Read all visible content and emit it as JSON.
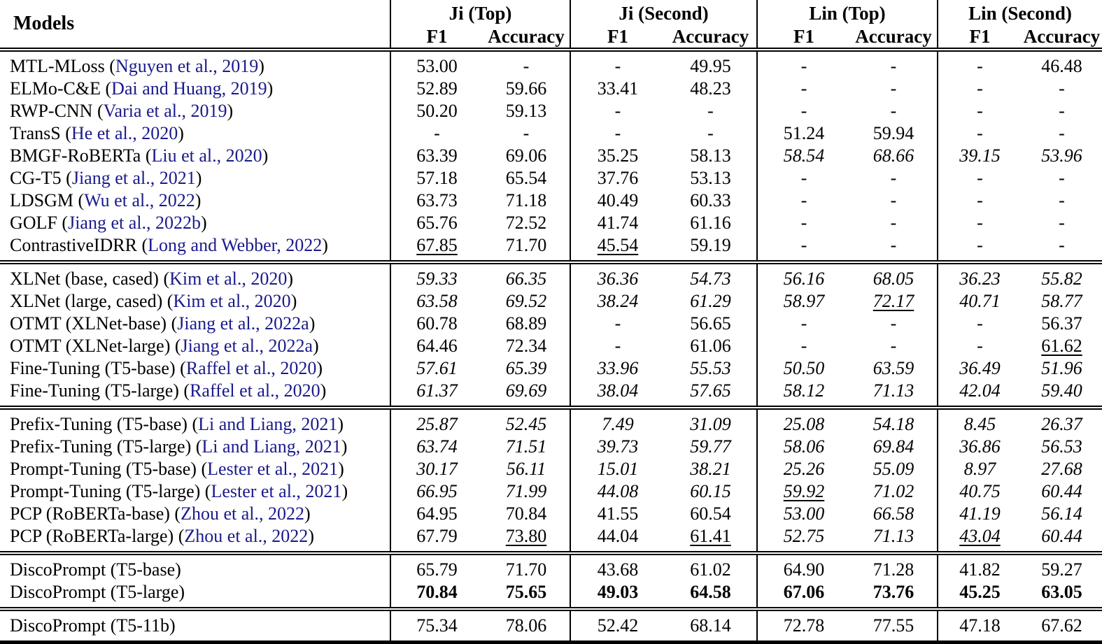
{
  "table": {
    "header": {
      "models_label": "Models",
      "groups": [
        "Ji (Top)",
        "Ji (Second)",
        "Lin (Top)",
        "Lin (Second)"
      ],
      "metrics": [
        "F1",
        "Accuracy"
      ]
    },
    "citation_color": "#1a1a8c",
    "sections": [
      {
        "rows": [
          {
            "model": "MTL-MLoss",
            "citation": "Nguyen et al., 2019",
            "values": [
              {
                "v": "53.00"
              },
              {
                "v": "-"
              },
              {
                "v": "-"
              },
              {
                "v": "49.95"
              },
              {
                "v": "-"
              },
              {
                "v": "-"
              },
              {
                "v": "-"
              },
              {
                "v": "46.48"
              }
            ]
          },
          {
            "model": "ELMo-C&E",
            "citation": "Dai and Huang, 2019",
            "values": [
              {
                "v": "52.89"
              },
              {
                "v": "59.66"
              },
              {
                "v": "33.41"
              },
              {
                "v": "48.23"
              },
              {
                "v": "-"
              },
              {
                "v": "-"
              },
              {
                "v": "-"
              },
              {
                "v": "-"
              }
            ]
          },
          {
            "model": "RWP-CNN",
            "citation": "Varia et al., 2019",
            "values": [
              {
                "v": "50.20"
              },
              {
                "v": "59.13"
              },
              {
                "v": "-"
              },
              {
                "v": "-"
              },
              {
                "v": "-"
              },
              {
                "v": "-"
              },
              {
                "v": "-"
              },
              {
                "v": "-"
              }
            ]
          },
          {
            "model": "TransS",
            "citation": "He et al., 2020",
            "values": [
              {
                "v": "-"
              },
              {
                "v": "-"
              },
              {
                "v": "-"
              },
              {
                "v": "-"
              },
              {
                "v": "51.24"
              },
              {
                "v": "59.94"
              },
              {
                "v": "-"
              },
              {
                "v": "-"
              }
            ]
          },
          {
            "model": "BMGF-RoBERTa",
            "citation": "Liu et al., 2020",
            "values": [
              {
                "v": "63.39"
              },
              {
                "v": "69.06"
              },
              {
                "v": "35.25"
              },
              {
                "v": "58.13"
              },
              {
                "v": "58.54",
                "i": 1
              },
              {
                "v": "68.66",
                "i": 1
              },
              {
                "v": "39.15",
                "i": 1
              },
              {
                "v": "53.96",
                "i": 1
              }
            ]
          },
          {
            "model": "CG-T5",
            "citation": "Jiang et al., 2021",
            "values": [
              {
                "v": "57.18"
              },
              {
                "v": "65.54"
              },
              {
                "v": "37.76"
              },
              {
                "v": "53.13"
              },
              {
                "v": "-"
              },
              {
                "v": "-"
              },
              {
                "v": "-"
              },
              {
                "v": "-"
              }
            ]
          },
          {
            "model": "LDSGM",
            "citation": "Wu et al., 2022",
            "values": [
              {
                "v": "63.73"
              },
              {
                "v": "71.18"
              },
              {
                "v": "40.49"
              },
              {
                "v": "60.33"
              },
              {
                "v": "-"
              },
              {
                "v": "-"
              },
              {
                "v": "-"
              },
              {
                "v": "-"
              }
            ]
          },
          {
            "model": "GOLF",
            "citation": "Jiang et al., 2022b",
            "values": [
              {
                "v": "65.76"
              },
              {
                "v": "72.52"
              },
              {
                "v": "41.74"
              },
              {
                "v": "61.16"
              },
              {
                "v": "-"
              },
              {
                "v": "-"
              },
              {
                "v": "-"
              },
              {
                "v": "-"
              }
            ]
          },
          {
            "model": "ContrastiveIDRR",
            "citation": "Long and Webber, 2022",
            "values": [
              {
                "v": "67.85",
                "u": 1
              },
              {
                "v": "71.70"
              },
              {
                "v": "45.54",
                "u": 1
              },
              {
                "v": "59.19"
              },
              {
                "v": "-"
              },
              {
                "v": "-"
              },
              {
                "v": "-"
              },
              {
                "v": "-"
              }
            ]
          }
        ]
      },
      {
        "rows": [
          {
            "model": "XLNet (base, cased)",
            "citation": "Kim et al., 2020",
            "values": [
              {
                "v": "59.33",
                "i": 1
              },
              {
                "v": "66.35",
                "i": 1
              },
              {
                "v": "36.36",
                "i": 1
              },
              {
                "v": "54.73",
                "i": 1
              },
              {
                "v": "56.16",
                "i": 1
              },
              {
                "v": "68.05",
                "i": 1
              },
              {
                "v": "36.23",
                "i": 1
              },
              {
                "v": "55.82",
                "i": 1
              }
            ]
          },
          {
            "model": "XLNet (large, cased)",
            "citation": "Kim et al., 2020",
            "values": [
              {
                "v": "63.58",
                "i": 1
              },
              {
                "v": "69.52",
                "i": 1
              },
              {
                "v": "38.24",
                "i": 1
              },
              {
                "v": "61.29",
                "i": 1
              },
              {
                "v": "58.97",
                "i": 1
              },
              {
                "v": "72.17",
                "i": 1,
                "u": 1
              },
              {
                "v": "40.71",
                "i": 1
              },
              {
                "v": "58.77",
                "i": 1
              }
            ]
          },
          {
            "model": "OTMT (XLNet-base)",
            "citation": "Jiang et al., 2022a",
            "values": [
              {
                "v": "60.78"
              },
              {
                "v": "68.89"
              },
              {
                "v": "-"
              },
              {
                "v": "56.65"
              },
              {
                "v": "-"
              },
              {
                "v": "-"
              },
              {
                "v": "-"
              },
              {
                "v": "56.37"
              }
            ]
          },
          {
            "model": "OTMT (XLNet-large)",
            "citation": "Jiang et al., 2022a",
            "values": [
              {
                "v": "64.46"
              },
              {
                "v": "72.34"
              },
              {
                "v": "-"
              },
              {
                "v": "61.06"
              },
              {
                "v": "-"
              },
              {
                "v": "-"
              },
              {
                "v": "-"
              },
              {
                "v": "61.62",
                "u": 1
              }
            ]
          },
          {
            "model": "Fine-Tuning (T5-base)",
            "citation": "Raffel et al., 2020",
            "values": [
              {
                "v": "57.61",
                "i": 1
              },
              {
                "v": "65.39",
                "i": 1
              },
              {
                "v": "33.96",
                "i": 1
              },
              {
                "v": "55.53",
                "i": 1
              },
              {
                "v": "50.50",
                "i": 1
              },
              {
                "v": "63.59",
                "i": 1
              },
              {
                "v": "36.49",
                "i": 1
              },
              {
                "v": "51.96",
                "i": 1
              }
            ]
          },
          {
            "model": "Fine-Tuning (T5-large)",
            "citation": "Raffel et al., 2020",
            "values": [
              {
                "v": "61.37",
                "i": 1
              },
              {
                "v": "69.69",
                "i": 1
              },
              {
                "v": "38.04",
                "i": 1
              },
              {
                "v": "57.65",
                "i": 1
              },
              {
                "v": "58.12",
                "i": 1
              },
              {
                "v": "71.13",
                "i": 1
              },
              {
                "v": "42.04",
                "i": 1
              },
              {
                "v": "59.40",
                "i": 1
              }
            ]
          }
        ]
      },
      {
        "rows": [
          {
            "model": "Prefix-Tuning (T5-base)",
            "citation": "Li and Liang, 2021",
            "values": [
              {
                "v": "25.87",
                "i": 1
              },
              {
                "v": "52.45",
                "i": 1
              },
              {
                "v": "7.49",
                "i": 1
              },
              {
                "v": "31.09",
                "i": 1
              },
              {
                "v": "25.08",
                "i": 1
              },
              {
                "v": "54.18",
                "i": 1
              },
              {
                "v": "8.45",
                "i": 1
              },
              {
                "v": "26.37",
                "i": 1
              }
            ]
          },
          {
            "model": "Prefix-Tuning (T5-large)",
            "citation": "Li and Liang, 2021",
            "values": [
              {
                "v": "63.74",
                "i": 1
              },
              {
                "v": "71.51",
                "i": 1
              },
              {
                "v": "39.73",
                "i": 1
              },
              {
                "v": "59.77",
                "i": 1
              },
              {
                "v": "58.06",
                "i": 1
              },
              {
                "v": "69.84",
                "i": 1
              },
              {
                "v": "36.86",
                "i": 1
              },
              {
                "v": "56.53",
                "i": 1
              }
            ]
          },
          {
            "model": "Prompt-Tuning (T5-base)",
            "citation": "Lester et al., 2021",
            "values": [
              {
                "v": "30.17",
                "i": 1
              },
              {
                "v": "56.11",
                "i": 1
              },
              {
                "v": "15.01",
                "i": 1
              },
              {
                "v": "38.21",
                "i": 1
              },
              {
                "v": "25.26",
                "i": 1
              },
              {
                "v": "55.09",
                "i": 1
              },
              {
                "v": "8.97",
                "i": 1
              },
              {
                "v": "27.68",
                "i": 1
              }
            ]
          },
          {
            "model": "Prompt-Tuning (T5-large)",
            "citation": "Lester et al., 2021",
            "values": [
              {
                "v": "66.95",
                "i": 1
              },
              {
                "v": "71.99",
                "i": 1
              },
              {
                "v": "44.08",
                "i": 1
              },
              {
                "v": "60.15",
                "i": 1
              },
              {
                "v": "59.92",
                "i": 1,
                "u": 1
              },
              {
                "v": "71.02",
                "i": 1
              },
              {
                "v": "40.75",
                "i": 1
              },
              {
                "v": "60.44",
                "i": 1
              }
            ]
          },
          {
            "model": "PCP (RoBERTa-base)",
            "citation": "Zhou et al., 2022",
            "values": [
              {
                "v": "64.95"
              },
              {
                "v": "70.84"
              },
              {
                "v": "41.55"
              },
              {
                "v": "60.54"
              },
              {
                "v": "53.00",
                "i": 1
              },
              {
                "v": "66.58",
                "i": 1
              },
              {
                "v": "41.19",
                "i": 1
              },
              {
                "v": "56.14",
                "i": 1
              }
            ]
          },
          {
            "model": "PCP (RoBERTa-large)",
            "citation": "Zhou et al., 2022",
            "values": [
              {
                "v": "67.79"
              },
              {
                "v": "73.80",
                "u": 1
              },
              {
                "v": "44.04"
              },
              {
                "v": "61.41",
                "u": 1
              },
              {
                "v": "52.75",
                "i": 1
              },
              {
                "v": "71.13",
                "i": 1
              },
              {
                "v": "43.04",
                "i": 1,
                "u": 1
              },
              {
                "v": "60.44",
                "i": 1
              }
            ]
          }
        ]
      },
      {
        "rows": [
          {
            "model": "DiscoPrompt (T5-base)",
            "citation": null,
            "values": [
              {
                "v": "65.79"
              },
              {
                "v": "71.70"
              },
              {
                "v": "43.68"
              },
              {
                "v": "61.02"
              },
              {
                "v": "64.90"
              },
              {
                "v": "71.28"
              },
              {
                "v": "41.82"
              },
              {
                "v": "59.27"
              }
            ]
          },
          {
            "model": "DiscoPrompt (T5-large)",
            "citation": null,
            "bold": true,
            "values": [
              {
                "v": "70.84"
              },
              {
                "v": "75.65"
              },
              {
                "v": "49.03"
              },
              {
                "v": "64.58"
              },
              {
                "v": "67.06"
              },
              {
                "v": "73.76"
              },
              {
                "v": "45.25"
              },
              {
                "v": "63.05"
              }
            ]
          }
        ]
      },
      {
        "rows": [
          {
            "model": "DiscoPrompt (T5-11b)",
            "citation": null,
            "values": [
              {
                "v": "75.34"
              },
              {
                "v": "78.06"
              },
              {
                "v": "52.42"
              },
              {
                "v": "68.14"
              },
              {
                "v": "72.78"
              },
              {
                "v": "77.55"
              },
              {
                "v": "47.18"
              },
              {
                "v": "67.62"
              }
            ]
          }
        ]
      }
    ]
  }
}
